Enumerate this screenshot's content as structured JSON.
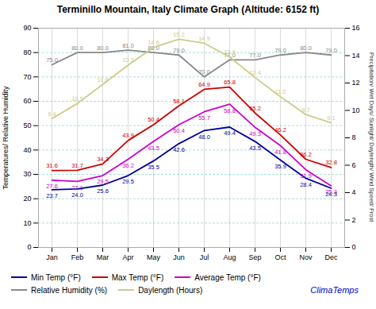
{
  "chart_data": {
    "type": "line",
    "title": "Terminillo Mountain, Italy Climate Graph (Altitude: 6152 ft)",
    "categories": [
      "Jan",
      "Feb",
      "Mar",
      "Apr",
      "May",
      "Jun",
      "Jul",
      "Aug",
      "Sep",
      "Oct",
      "Nov",
      "Dec"
    ],
    "series": [
      {
        "name": "Min Temp (°F)",
        "color": "#000099",
        "axis": "y",
        "values": [
          23.7,
          24.0,
          25.6,
          29.5,
          35.5,
          42.6,
          48.0,
          49.4,
          43.5,
          35.9,
          28.4,
          24.3
        ],
        "value_labels": [
          "23.7",
          "24.0",
          "25.6",
          "29.5",
          "35.5",
          "42.6",
          "48.0",
          "49.4",
          "43.5",
          "35.9",
          "28.4",
          "24.3"
        ]
      },
      {
        "name": "Max Temp (°F)",
        "color": "#cc0000",
        "axis": "y",
        "values": [
          31.6,
          31.7,
          34.3,
          43.9,
          50.4,
          58.1,
          64.9,
          65.8,
          55.2,
          46.2,
          36.2,
          32.8
        ],
        "value_labels": [
          "31.6",
          "31.7",
          "34.3",
          "43.9",
          "50.4",
          "58.1",
          "64.9",
          "65.8",
          "55.2",
          "46.2",
          "36.2",
          "32.8"
        ]
      },
      {
        "name": "Average Temp (°F)",
        "color": "#cc00cc",
        "axis": "y",
        "values": [
          27.6,
          27.1,
          29.5,
          36.2,
          43.5,
          50.4,
          55.7,
          58.8,
          49.3,
          41.8,
          31.9,
          25.3
        ],
        "value_labels": [
          "27.6",
          "27.1",
          "29.5",
          "36.2",
          "43.5",
          "50.4",
          "55.7",
          "58.8",
          "49.3",
          "41.8",
          "31.9",
          "25.3"
        ]
      },
      {
        "name": "Relative Humidity (%)",
        "color": "#888888",
        "axis": "y",
        "values": [
          75.0,
          80.0,
          80.0,
          81.0,
          80.0,
          79.0,
          70.0,
          77.0,
          77.0,
          79.0,
          80.0,
          79.0
        ],
        "value_labels": [
          "75.0",
          "80.0",
          "80.0",
          "81.0",
          "80.0",
          "79.0",
          "70.0",
          "77.0",
          "77.0",
          "79.0",
          "80.0",
          "79.0"
        ]
      },
      {
        "name": "Daylength (Hours)",
        "color": "#cccc88",
        "axis": "y2",
        "values": [
          9.4,
          10.5,
          11.9,
          13.3,
          14.6,
          15.2,
          14.9,
          13.9,
          12.4,
          11.0,
          9.7,
          9.1
        ],
        "value_labels": [
          "9.4",
          "10.5",
          "11.9",
          "13.3",
          "14.6",
          "15.2",
          "14.9",
          "13.9",
          "12.4",
          "11.0",
          "9.7",
          "9.1"
        ]
      }
    ],
    "y_label": "Temperatures/ Relative Humidity",
    "y2_label": "Precipitation/ Wet Days/ Sunlight/ Daylength/ Wind Speed/ Frost",
    "ylim": [
      0,
      90
    ],
    "yticks": [
      0,
      10,
      20,
      30,
      40,
      50,
      60,
      70,
      80,
      90
    ],
    "y2lim": [
      0,
      16
    ],
    "y2ticks": [
      0,
      2,
      4,
      6,
      8,
      10,
      12,
      14,
      16
    ],
    "grid": true,
    "data_labels": true,
    "legend": "bottom",
    "annotations": [
      {
        "text": "ClimaTemps",
        "color": "#0000cc"
      }
    ]
  }
}
